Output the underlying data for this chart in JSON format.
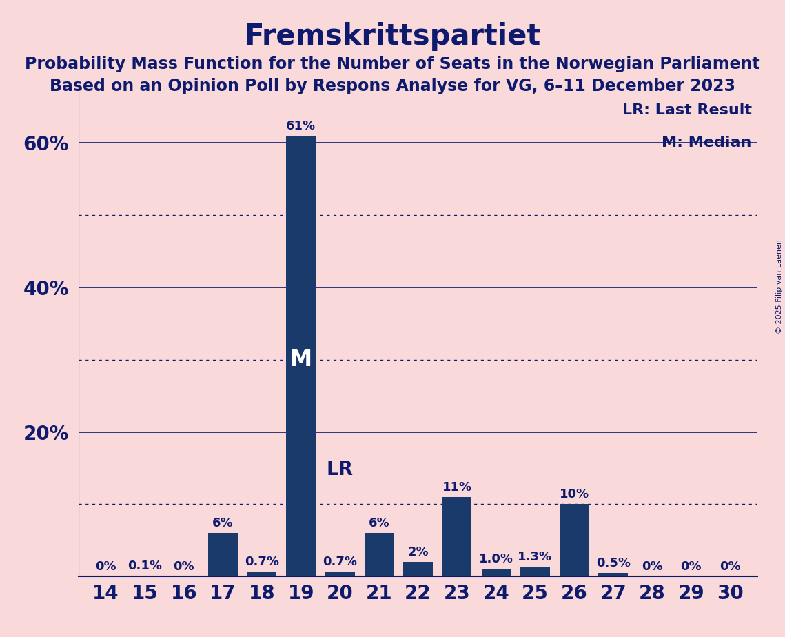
{
  "title": "Fremskrittspartiet",
  "subtitle1": "Probability Mass Function for the Number of Seats in the Norwegian Parliament",
  "subtitle2": "Based on an Opinion Poll by Respons Analyse for VG, 6–11 December 2023",
  "copyright": "© 2025 Filip van Laenen",
  "seats": [
    14,
    15,
    16,
    17,
    18,
    19,
    20,
    21,
    22,
    23,
    24,
    25,
    26,
    27,
    28,
    29,
    30
  ],
  "probabilities": [
    0.0,
    0.1,
    0.0,
    6.0,
    0.7,
    61.0,
    0.7,
    6.0,
    2.0,
    11.0,
    1.0,
    1.3,
    10.0,
    0.5,
    0.0,
    0.0,
    0.0
  ],
  "bar_labels": [
    "0%",
    "0.1%",
    "0%",
    "6%",
    "0.7%",
    "61%",
    "0.7%",
    "6%",
    "2%",
    "11%",
    "1.0%",
    "1.3%",
    "10%",
    "0.5%",
    "0%",
    "0%",
    "0%"
  ],
  "bar_color": "#1a3a6b",
  "background_color": "#f9d9d9",
  "text_color": "#0d1a6e",
  "median_seat": 19,
  "last_result_seat": 20,
  "legend_lr": "LR: Last Result",
  "legend_m": "M: Median",
  "ylim": [
    0,
    67
  ],
  "yticks": [
    20,
    40,
    60
  ],
  "ytick_labels": [
    "20%",
    "40%",
    "60%"
  ],
  "solid_lines": [
    20,
    40,
    60
  ],
  "dotted_lines": [
    10,
    30,
    50
  ],
  "title_fontsize": 30,
  "subtitle_fontsize": 17,
  "axis_fontsize": 20,
  "bar_label_fontsize": 13,
  "legend_fontsize": 16,
  "median_label_fontsize": 24,
  "lr_label_fontsize": 20
}
